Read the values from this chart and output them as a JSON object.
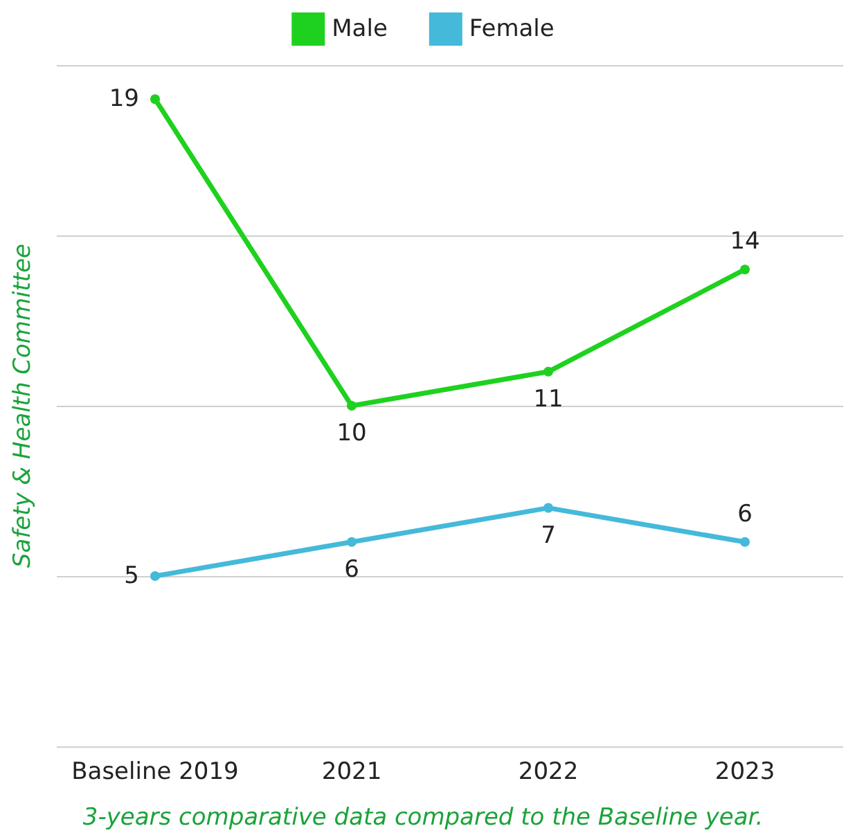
{
  "chart_data": {
    "type": "line",
    "ylabel": "Safety & Health Committee",
    "annotations": [
      "3-years comparative data compared to the Baseline year."
    ],
    "categories": [
      "Baseline 2019",
      "2021",
      "2022",
      "2023"
    ],
    "series": [
      {
        "name": "Male",
        "color": "#1fd11f",
        "values": [
          19,
          10,
          11,
          14
        ]
      },
      {
        "name": "Female",
        "color": "#45b9d9",
        "values": [
          5,
          6,
          7,
          6
        ]
      }
    ],
    "ylim": [
      0,
      20
    ],
    "yticks": [
      {
        "value": 0,
        "label": null
      },
      {
        "value": 5,
        "label": null
      },
      {
        "value": 10,
        "label": null
      },
      {
        "value": 15,
        "label": null
      },
      {
        "value": 20,
        "label": null
      }
    ],
    "tick_labels": "x",
    "grid": "y",
    "legend": "top",
    "marker": "circle",
    "line_style": "solid",
    "data_labels": true
  }
}
